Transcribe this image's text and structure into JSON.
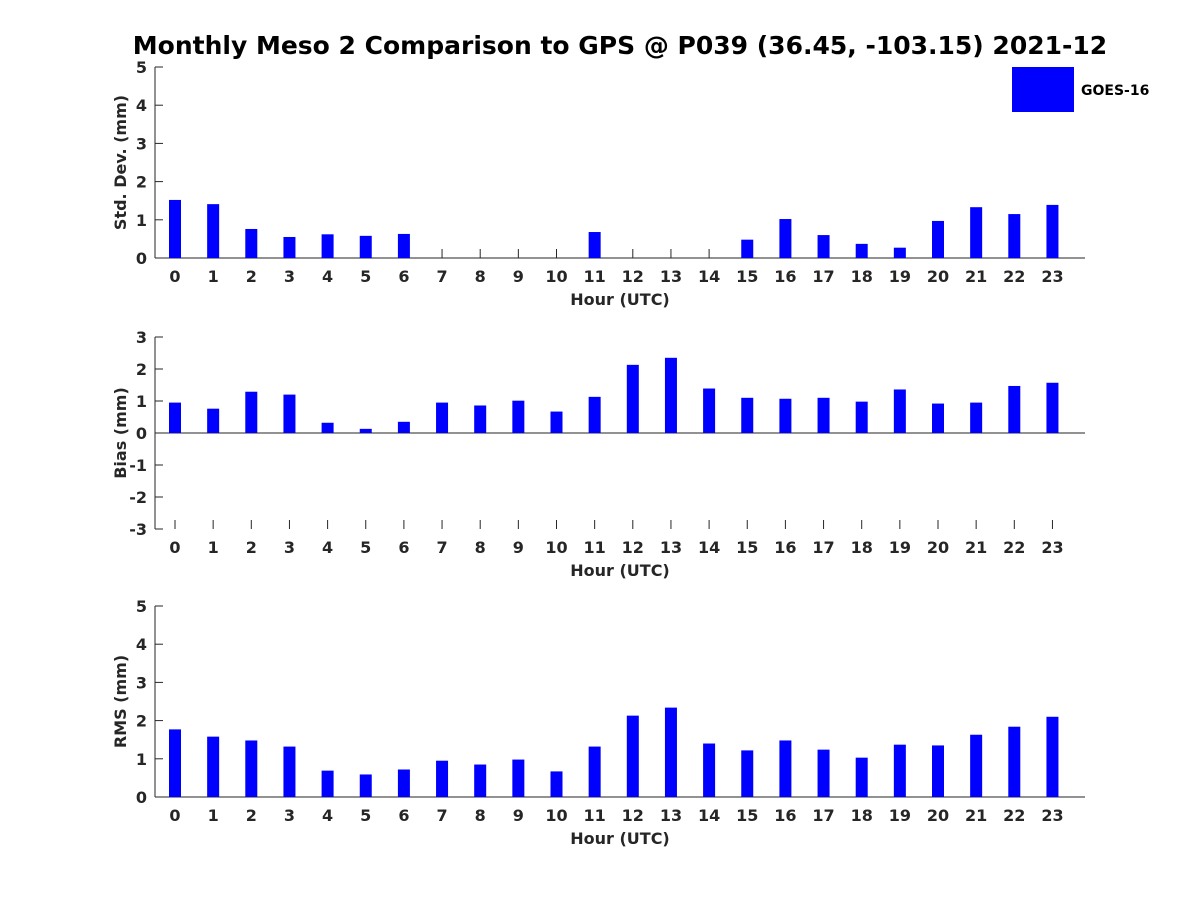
{
  "chart_data": {
    "title": "Monthly Meso 2 Comparison to GPS @ P039 (36.45, -103.15) 2021-12",
    "legend": {
      "entries": [
        "GOES-16"
      ],
      "placement": "top-right",
      "color": "#0000ff"
    },
    "bar_color": "#0000ff",
    "panels": [
      {
        "type": "bar",
        "name": "stddev",
        "ylabel": "Std. Dev. (mm)",
        "xlabel": "Hour (UTC)",
        "ylim": [
          0,
          5
        ],
        "yticks": [
          "0",
          "1",
          "2",
          "3",
          "4",
          "5"
        ],
        "categories": [
          "0",
          "1",
          "2",
          "3",
          "4",
          "5",
          "6",
          "7",
          "8",
          "9",
          "10",
          "11",
          "12",
          "13",
          "14",
          "15",
          "16",
          "17",
          "18",
          "19",
          "20",
          "21",
          "22",
          "23"
        ],
        "values": [
          1.52,
          1.41,
          0.76,
          0.55,
          0.62,
          0.58,
          0.63,
          null,
          null,
          null,
          null,
          0.68,
          null,
          null,
          null,
          0.48,
          1.02,
          0.6,
          0.37,
          0.27,
          0.97,
          1.33,
          1.15,
          1.39
        ]
      },
      {
        "type": "bar",
        "name": "bias",
        "ylabel": "Bias (mm)",
        "xlabel": "Hour (UTC)",
        "ylim": [
          -3,
          3
        ],
        "yticks": [
          "-3",
          "-2",
          "-1",
          "0",
          "1",
          "2",
          "3"
        ],
        "categories": [
          "0",
          "1",
          "2",
          "3",
          "4",
          "5",
          "6",
          "7",
          "8",
          "9",
          "10",
          "11",
          "12",
          "13",
          "14",
          "15",
          "16",
          "17",
          "18",
          "19",
          "20",
          "21",
          "22",
          "23"
        ],
        "values": [
          0.95,
          0.76,
          1.29,
          1.2,
          0.32,
          0.13,
          0.35,
          0.95,
          0.86,
          1.01,
          0.67,
          1.13,
          2.13,
          2.35,
          1.39,
          1.1,
          1.07,
          1.1,
          0.98,
          1.36,
          0.92,
          0.95,
          1.47,
          1.57
        ]
      },
      {
        "type": "bar",
        "name": "rms",
        "ylabel": "RMS (mm)",
        "xlabel": "Hour (UTC)",
        "ylim": [
          0,
          5
        ],
        "yticks": [
          "0",
          "1",
          "2",
          "3",
          "4",
          "5"
        ],
        "categories": [
          "0",
          "1",
          "2",
          "3",
          "4",
          "5",
          "6",
          "7",
          "8",
          "9",
          "10",
          "11",
          "12",
          "13",
          "14",
          "15",
          "16",
          "17",
          "18",
          "19",
          "20",
          "21",
          "22",
          "23"
        ],
        "values": [
          1.77,
          1.58,
          1.48,
          1.32,
          0.69,
          0.59,
          0.72,
          0.95,
          0.85,
          0.98,
          0.67,
          1.32,
          2.13,
          2.34,
          1.4,
          1.22,
          1.48,
          1.24,
          1.03,
          1.37,
          1.35,
          1.63,
          1.84,
          2.1
        ]
      }
    ]
  }
}
